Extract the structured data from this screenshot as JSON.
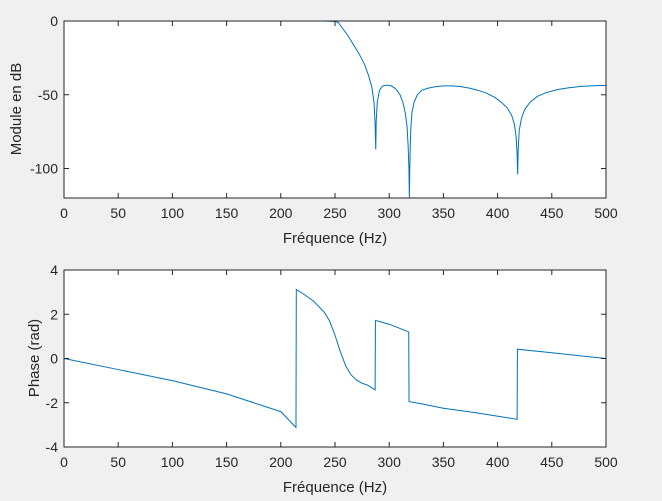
{
  "figure": {
    "background": "#f0f0f0",
    "axes_background": "#ffffff",
    "line_color": "#0072bd",
    "axis_color": "#262626"
  },
  "chart_data": [
    {
      "type": "line",
      "title": "",
      "xlabel": "Fréquence (Hz)",
      "ylabel": "Module en dB",
      "xlim": [
        0,
        500
      ],
      "ylim": [
        -120,
        0
      ],
      "xticks": [
        0,
        50,
        100,
        150,
        200,
        250,
        300,
        350,
        400,
        450,
        500
      ],
      "yticks": [
        -100,
        -50,
        0
      ],
      "grid": false,
      "series": [
        {
          "x": [
            0,
            50,
            100,
            150,
            200,
            240,
            250,
            253,
            257,
            262,
            267,
            272,
            277,
            281,
            284,
            286,
            287,
            287.6,
            288,
            289,
            291,
            294,
            298,
            302,
            306,
            310,
            313,
            315,
            316.5,
            317.5,
            318.2,
            318.6,
            319,
            319.4,
            320,
            321,
            323,
            326,
            330,
            336,
            343,
            350,
            358,
            366,
            374,
            382,
            390,
            398,
            404,
            409,
            413,
            415.5,
            417,
            418,
            418.5,
            419,
            420,
            422,
            425,
            430,
            437,
            445,
            455,
            465,
            475,
            485,
            495,
            500
          ],
          "y": [
            0,
            0,
            0,
            0,
            0,
            0,
            -0.3,
            -1,
            -5,
            -10,
            -16,
            -22,
            -29,
            -37,
            -45,
            -55,
            -70,
            -87,
            -68,
            -55,
            -47,
            -44,
            -43.5,
            -44,
            -46,
            -50,
            -56,
            -63,
            -72,
            -85,
            -100,
            -120,
            -100,
            -85,
            -72,
            -62,
            -55,
            -50,
            -47,
            -45.5,
            -44.5,
            -44,
            -44,
            -44.5,
            -45.5,
            -47,
            -49,
            -52,
            -55.5,
            -59,
            -64,
            -70,
            -78,
            -90,
            -104,
            -87,
            -74,
            -66,
            -60,
            -55,
            -51,
            -48.5,
            -46.5,
            -45.3,
            -44.5,
            -44,
            -43.7,
            -43.7
          ]
        }
      ]
    },
    {
      "type": "line",
      "title": "",
      "xlabel": "Fréquence (Hz)",
      "ylabel": "Phase (rad)",
      "xlim": [
        0,
        500
      ],
      "ylim": [
        -4,
        4
      ],
      "xticks": [
        0,
        50,
        100,
        150,
        200,
        250,
        300,
        350,
        400,
        450,
        500
      ],
      "yticks": [
        -4,
        -2,
        0,
        2,
        4
      ],
      "grid": false,
      "series": [
        {
          "x": [
            0,
            50,
            100,
            150,
            200,
            214,
            214.3,
            220,
            230,
            240,
            245,
            250,
            255,
            260,
            265,
            270,
            275,
            280,
            287,
            287.3,
            300,
            318,
            318.3,
            330,
            350,
            380,
            418,
            418.3,
            450,
            480,
            500
          ],
          "y": [
            0,
            -0.5,
            -1.0,
            -1.6,
            -2.4,
            -3.12,
            3.12,
            2.95,
            2.6,
            2.1,
            1.7,
            1.05,
            0.3,
            -0.35,
            -0.75,
            -0.98,
            -1.12,
            -1.2,
            -1.42,
            1.72,
            1.55,
            1.2,
            -1.95,
            -2.05,
            -2.25,
            -2.45,
            -2.75,
            0.42,
            0.26,
            0.1,
            0
          ]
        }
      ]
    }
  ]
}
